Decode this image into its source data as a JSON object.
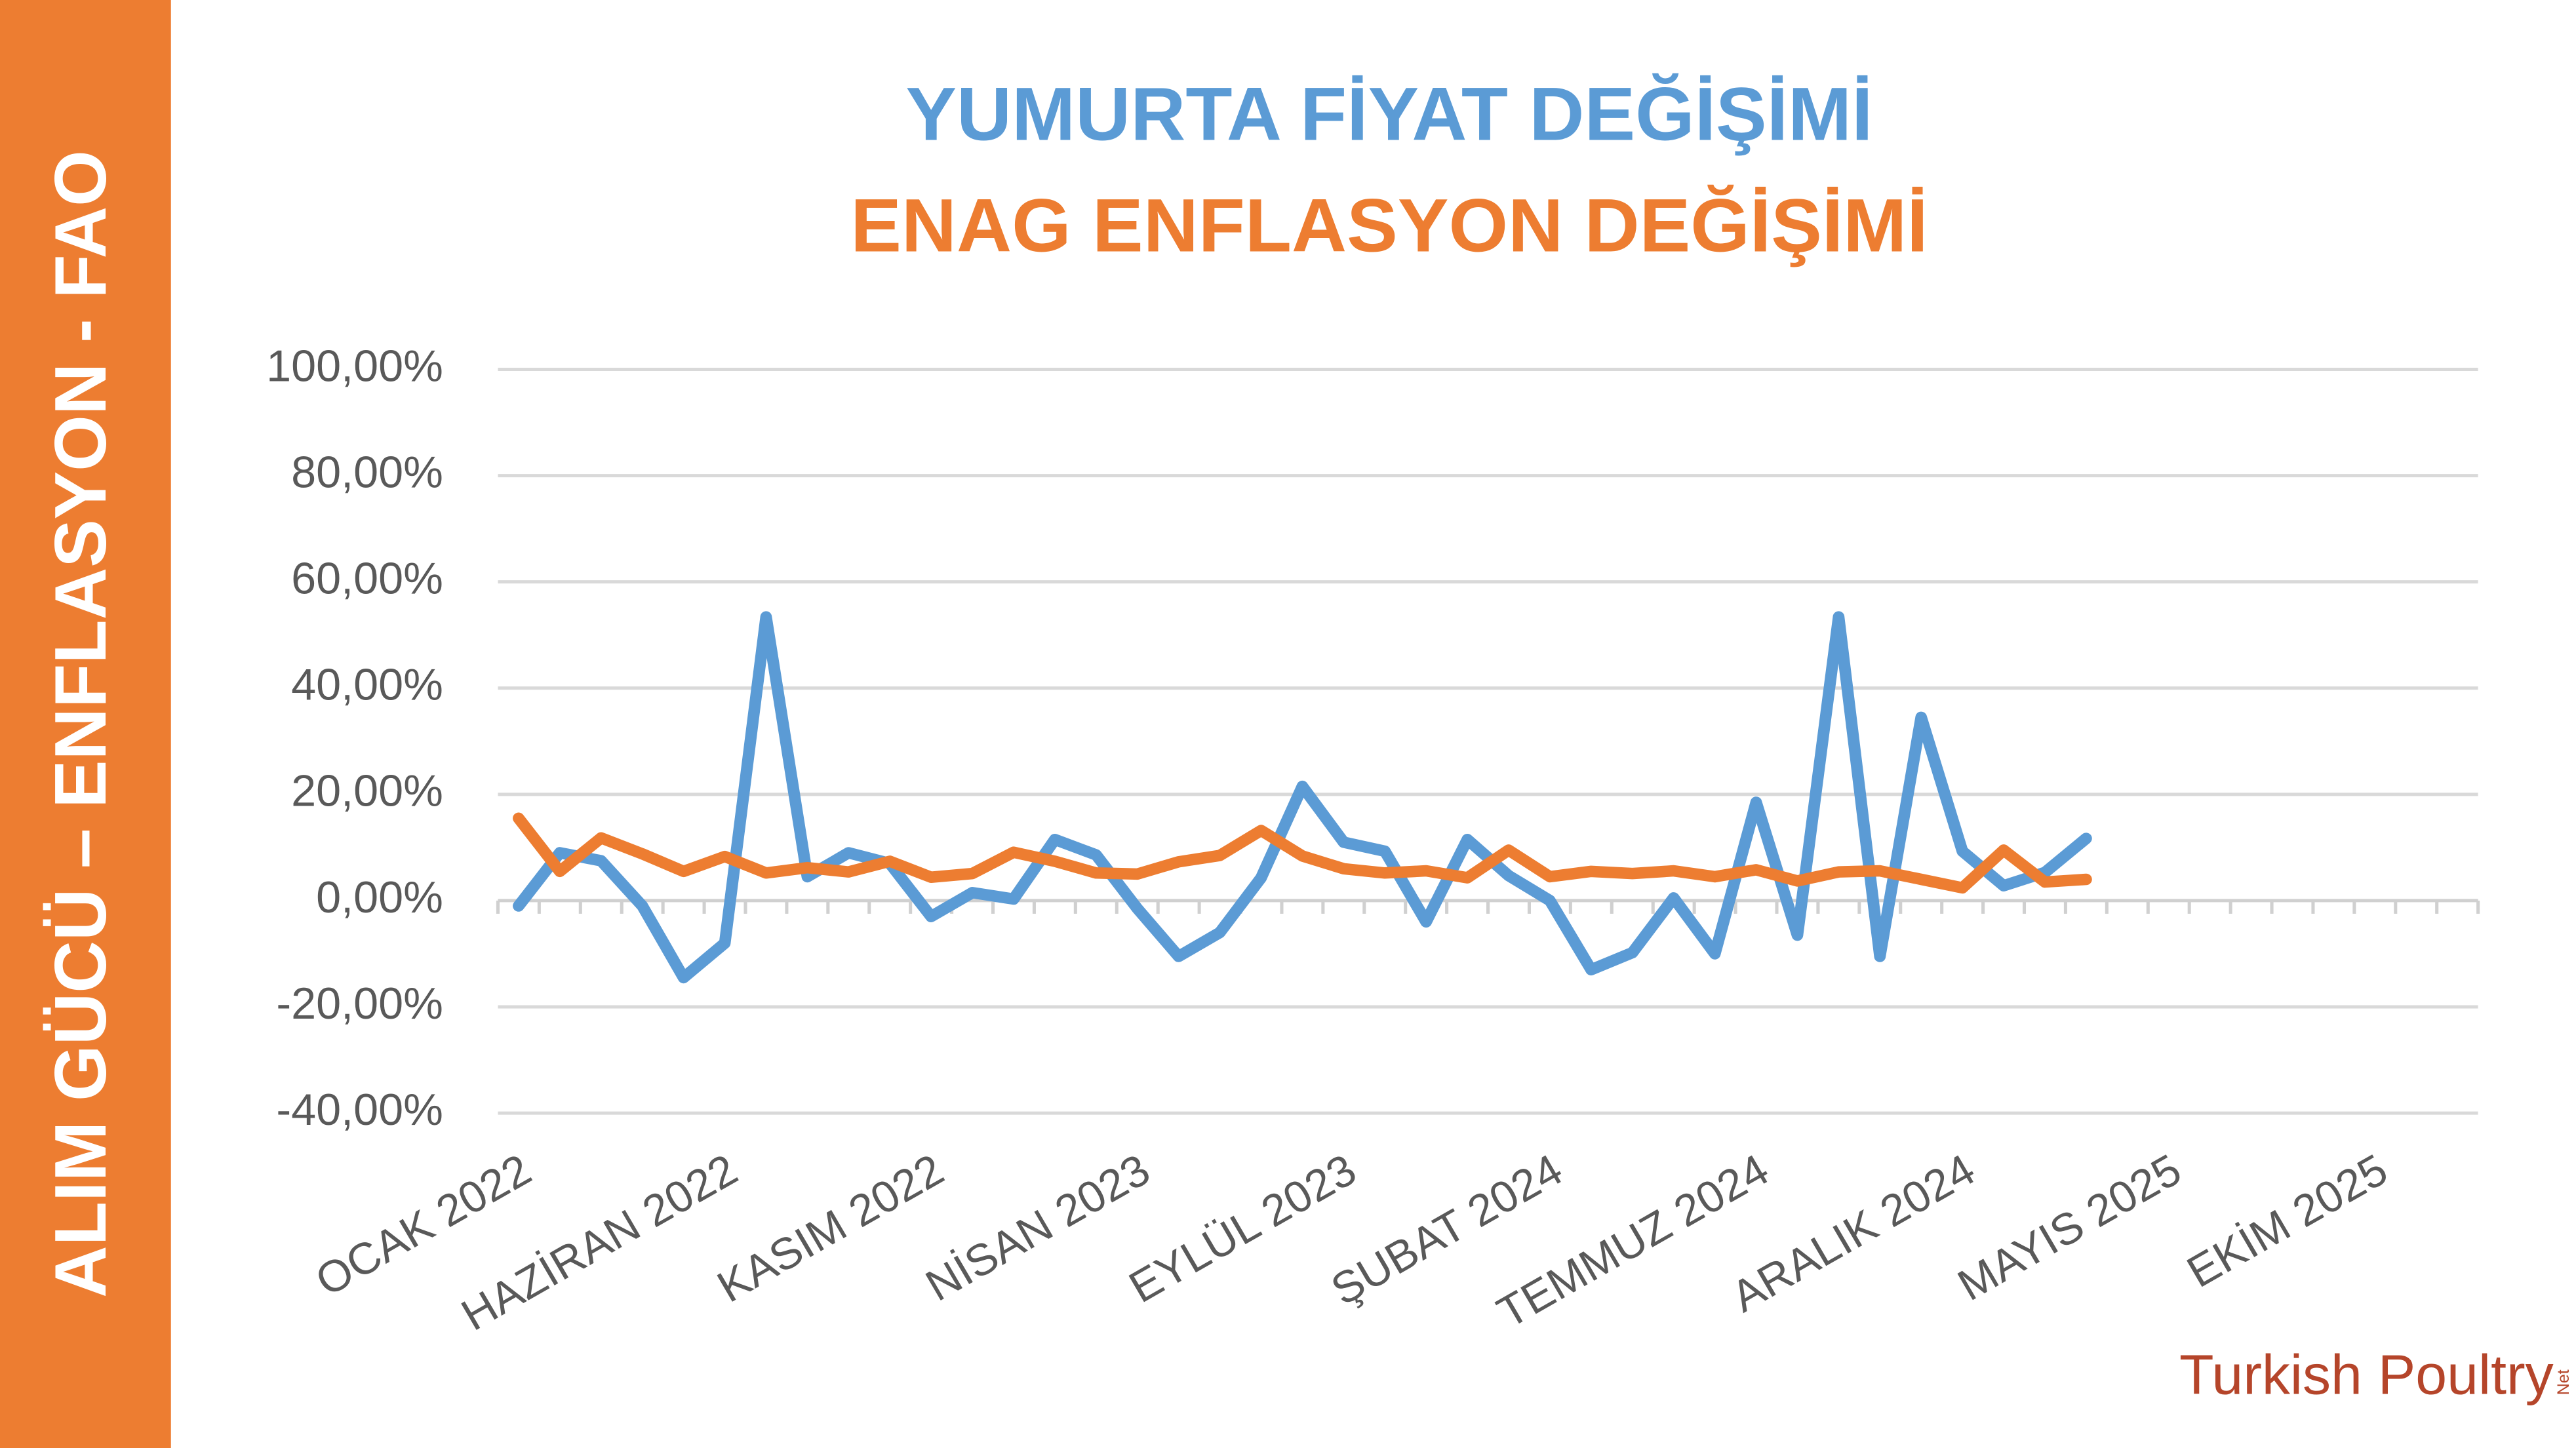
{
  "sidebar_text": "ALIM GÜCÜ – ENFLASYON - FAO",
  "logo": {
    "text": "Turkish Poultry",
    "suffix": "Net"
  },
  "chart_data": {
    "type": "line",
    "categories": [
      "OCAK 2022",
      null,
      null,
      null,
      null,
      "HAZİRAN 2022",
      null,
      null,
      null,
      null,
      "KASIM 2022",
      null,
      null,
      null,
      null,
      "NİSAN 2023",
      null,
      null,
      null,
      null,
      "EYLÜL 2023",
      null,
      null,
      null,
      null,
      "ŞUBAT 2024",
      null,
      null,
      null,
      null,
      "TEMMUZ 2024",
      null,
      null,
      null,
      null,
      "ARALIK 2024",
      null,
      null,
      null,
      null,
      "MAYIS 2025",
      null,
      null,
      null,
      null,
      "EKİM 2025",
      null,
      null
    ],
    "series": [
      {
        "name": "ENAG ENFLASYON DEĞİŞİMİ",
        "color": "#ED7D31",
        "values": [
          15.5,
          5.5,
          11.8,
          8.8,
          5.5,
          8.3,
          5.2,
          6.2,
          5.4,
          7.4,
          4.4,
          5.1,
          9.1,
          7.4,
          5.2,
          5.0,
          7.3,
          8.5,
          13.2,
          8.4,
          6.0,
          5.2,
          5.6,
          4.3,
          9.5,
          4.5,
          5.5,
          5.1,
          5.6,
          4.5,
          5.8,
          3.7,
          5.4,
          5.6,
          4.0,
          2.4,
          9.5,
          3.5,
          4.0,
          null,
          null,
          null,
          null,
          null,
          null,
          null,
          null,
          null
        ]
      },
      {
        "name": "YUMURTA FİYAT DEĞİŞİMİ",
        "color": "#5B9BD5",
        "values": [
          -1,
          9,
          7.5,
          -1,
          -14.5,
          -8,
          53.4,
          4.5,
          9,
          7,
          -3,
          1.5,
          0.3,
          11.5,
          8.6,
          -1.5,
          -10.5,
          -6,
          4.3,
          21.5,
          11,
          9.3,
          -4,
          11.5,
          4.7,
          0,
          -13,
          -9.8,
          0.5,
          -10,
          18.5,
          -6.5,
          53.4,
          -10.5,
          34.5,
          9.3,
          2.8,
          5.3,
          11.7,
          null,
          null,
          null,
          null,
          null,
          null,
          null,
          null,
          null
        ]
      }
    ],
    "ylim": [
      -40,
      100
    ],
    "yticks": [
      {
        "value": -40,
        "label": "-40,00%"
      },
      {
        "value": -20,
        "label": "-20,00%"
      },
      {
        "value": 0,
        "label": "0,00%"
      },
      {
        "value": 20,
        "label": "20,00%"
      },
      {
        "value": 40,
        "label": "40,00%"
      },
      {
        "value": 60,
        "label": "60,00%"
      },
      {
        "value": 80,
        "label": "80,00%"
      },
      {
        "value": 100,
        "label": "100,00%"
      }
    ],
    "grid": true
  }
}
